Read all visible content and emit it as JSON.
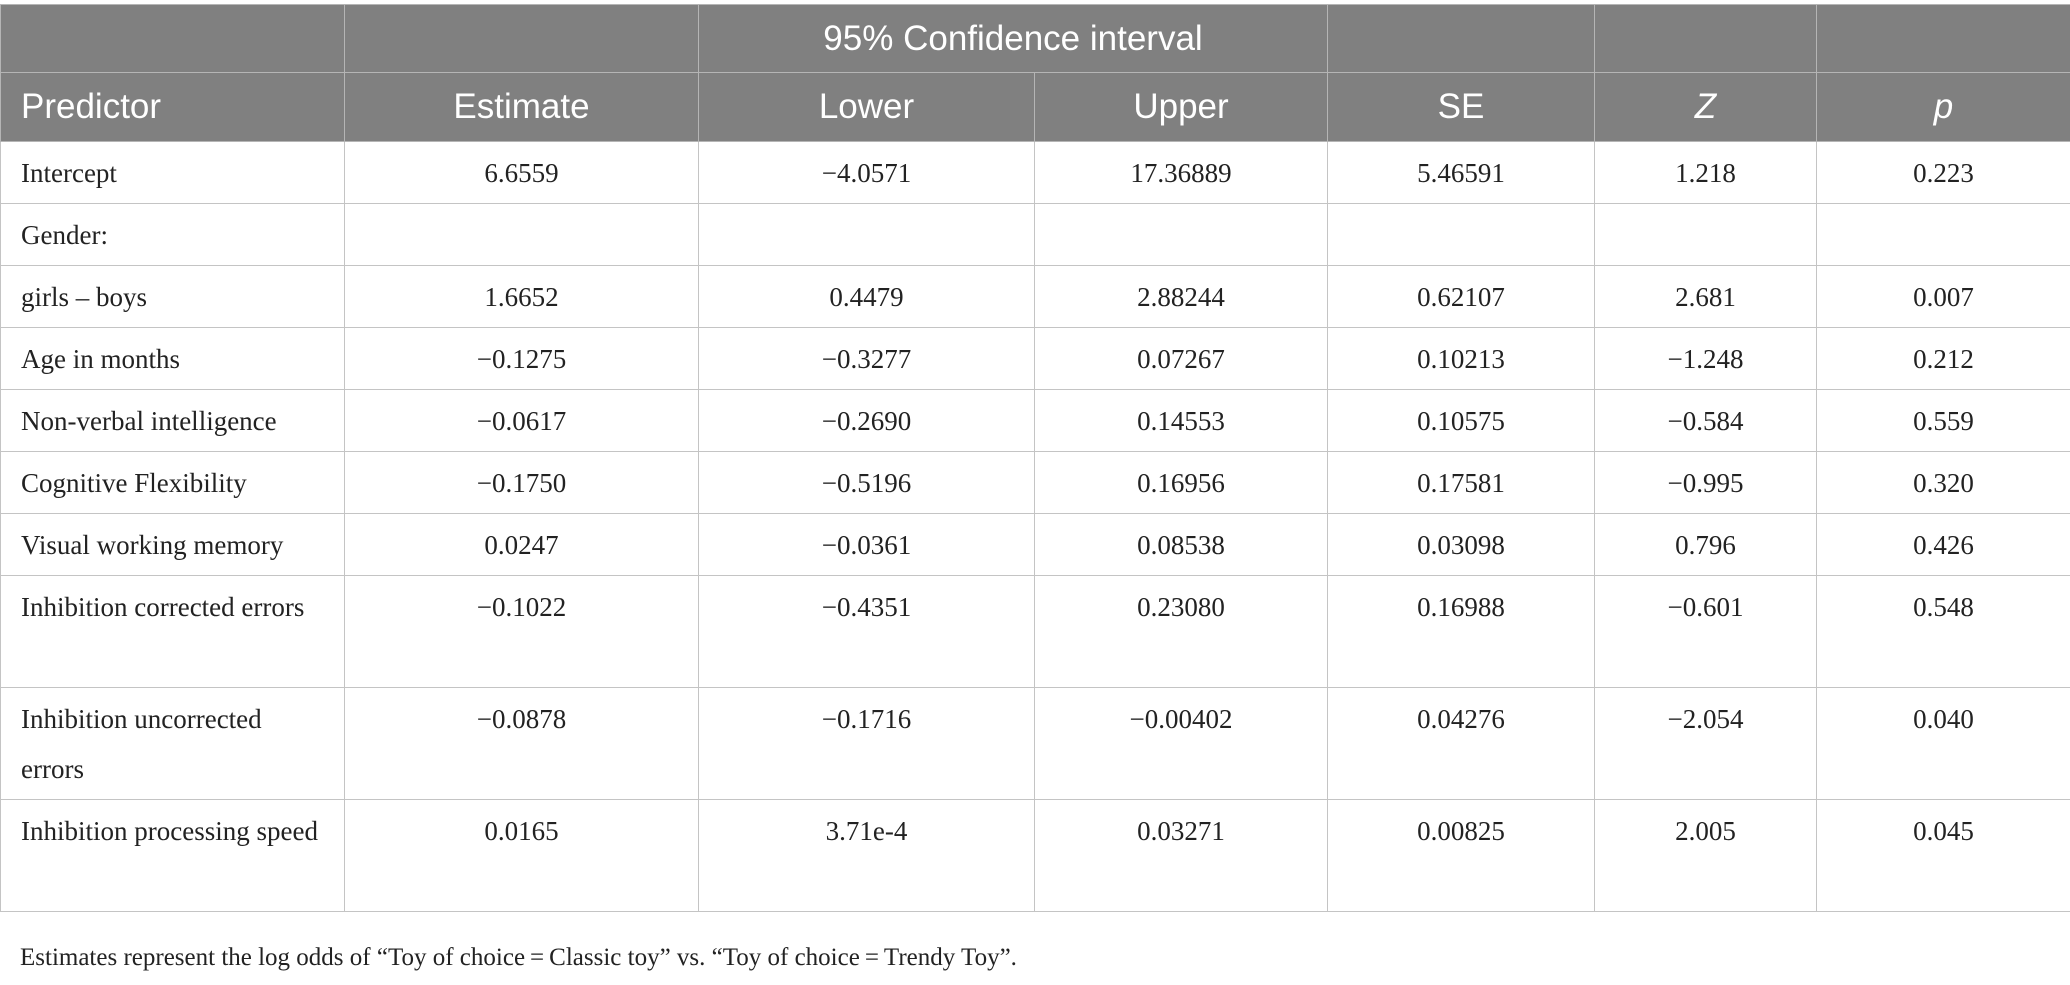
{
  "table": {
    "group_header": {
      "empty_left_1": "",
      "empty_left_2": "",
      "ci_label": "95% Confidence interval",
      "empty_right_1": "",
      "empty_right_2": "",
      "empty_right_3": ""
    },
    "columns": [
      "Predictor",
      "Estimate",
      "Lower",
      "Upper",
      "SE",
      "Z",
      "p"
    ],
    "rows": [
      {
        "predictor": "Intercept",
        "estimate": "6.6559",
        "lower": "−4.0571",
        "upper": "17.36889",
        "se": "5.46591",
        "z": "1.218",
        "p": "0.223"
      },
      {
        "predictor": "Gender:",
        "estimate": "",
        "lower": "",
        "upper": "",
        "se": "",
        "z": "",
        "p": ""
      },
      {
        "predictor": "girls – boys",
        "estimate": "1.6652",
        "lower": "0.4479",
        "upper": "2.88244",
        "se": "0.62107",
        "z": "2.681",
        "p": "0.007"
      },
      {
        "predictor": "Age in months",
        "estimate": "−0.1275",
        "lower": "−0.3277",
        "upper": "0.07267",
        "se": "0.10213",
        "z": "−1.248",
        "p": "0.212"
      },
      {
        "predictor": "Non-verbal intelligence",
        "estimate": "−0.0617",
        "lower": "−0.2690",
        "upper": "0.14553",
        "se": "0.10575",
        "z": "−0.584",
        "p": "0.559"
      },
      {
        "predictor": "Cognitive Flexibility",
        "estimate": "−0.1750",
        "lower": "−0.5196",
        "upper": "0.16956",
        "se": "0.17581",
        "z": "−0.995",
        "p": "0.320"
      },
      {
        "predictor": "Visual working memory",
        "estimate": "0.0247",
        "lower": "−0.0361",
        "upper": "0.08538",
        "se": "0.03098",
        "z": "0.796",
        "p": "0.426"
      },
      {
        "predictor": "Inhibition corrected errors",
        "estimate": "−0.1022",
        "lower": "−0.4351",
        "upper": "0.23080",
        "se": "0.16988",
        "z": "−0.601",
        "p": "0.548"
      },
      {
        "predictor": "Inhibition uncorrected errors",
        "estimate": "−0.0878",
        "lower": "−0.1716",
        "upper": "−0.00402",
        "se": "0.04276",
        "z": "−2.054",
        "p": "0.040"
      },
      {
        "predictor": "Inhibition processing speed",
        "estimate": "0.0165",
        "lower": "3.71e-4",
        "upper": "0.03271",
        "se": "0.00825",
        "z": "2.005",
        "p": "0.045"
      }
    ]
  },
  "footnote": "Estimates represent the log odds of “Toy of choice = Classic toy” vs. “Toy of choice = Trendy Toy”.",
  "colors": {
    "header_background": "#808080",
    "header_text": "#ffffff",
    "grid_line": "#c4c4c4"
  }
}
